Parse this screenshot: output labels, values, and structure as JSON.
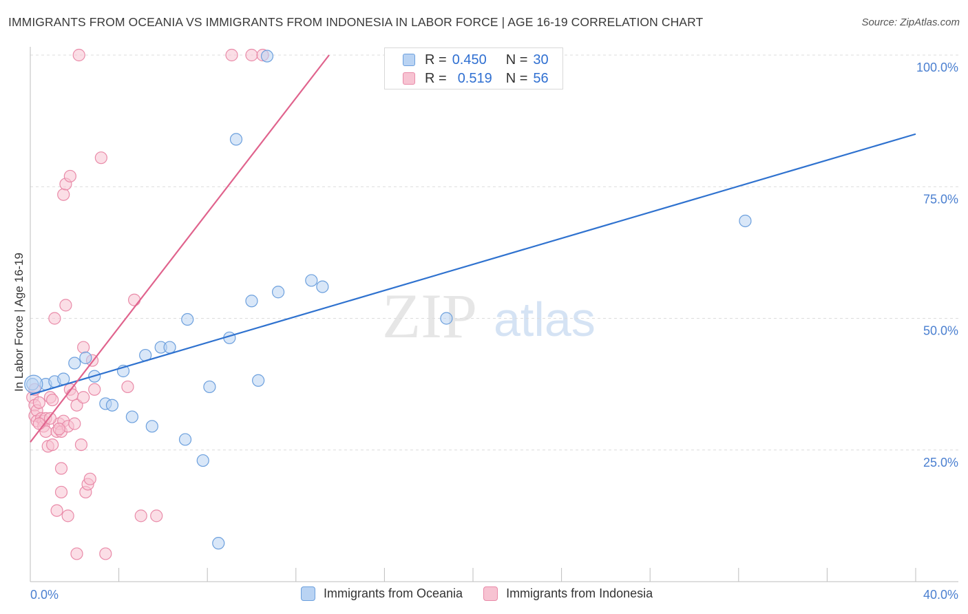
{
  "title": "IMMIGRANTS FROM OCEANIA VS IMMIGRANTS FROM INDONESIA IN LABOR FORCE | AGE 16-19 CORRELATION CHART",
  "source": "Source: ZipAtlas.com",
  "watermark": {
    "zip": "ZIP",
    "atlas": "atlas"
  },
  "legend_stats": [
    {
      "r_label": "R =",
      "r_value": "0.450",
      "n_label": "N =",
      "n_value": "30"
    },
    {
      "r_label": "R =",
      "r_value": "0.519",
      "n_label": "N =",
      "n_value": "56"
    }
  ],
  "colors": {
    "blue_fill": "#b9d3f3",
    "blue_stroke": "#6b9fdd",
    "blue_line": "#2f72cf",
    "pink_fill": "#f7c3d2",
    "pink_stroke": "#e98aa8",
    "pink_line": "#e0638d",
    "tick_text": "#4a7fd0",
    "grid": "#dcdcdc"
  },
  "chart_data": {
    "type": "scatter",
    "title": "IMMIGRANTS FROM OCEANIA VS IMMIGRANTS FROM INDONESIA IN LABOR FORCE | AGE 16-19 CORRELATION CHART",
    "xlabel": "",
    "ylabel": "In Labor Force | Age 16-19",
    "xlim": [
      0,
      40
    ],
    "ylim": [
      0,
      100
    ],
    "x_tick_labels": [
      "0.0%",
      "40.0%"
    ],
    "y_ticks": [
      25,
      50,
      75,
      100
    ],
    "y_tick_labels": [
      "25.0%",
      "50.0%",
      "75.0%",
      "100.0%"
    ],
    "grid": true,
    "series": [
      {
        "name": "Immigrants from Oceania",
        "r": 0.45,
        "n": 30,
        "trend": {
          "x": [
            0,
            40
          ],
          "y": [
            35.5,
            85.0
          ]
        },
        "points": [
          [
            0.1,
            37.5
          ],
          [
            0.7,
            37.5
          ],
          [
            1.1,
            38.0
          ],
          [
            1.5,
            38.5
          ],
          [
            2.0,
            41.5
          ],
          [
            2.5,
            42.5
          ],
          [
            2.9,
            39.0
          ],
          [
            3.4,
            33.8
          ],
          [
            3.7,
            33.5
          ],
          [
            4.2,
            40.0
          ],
          [
            4.6,
            31.3
          ],
          [
            5.2,
            43.0
          ],
          [
            5.5,
            29.5
          ],
          [
            5.9,
            44.5
          ],
          [
            6.3,
            44.5
          ],
          [
            7.0,
            27.0
          ],
          [
            7.1,
            49.8
          ],
          [
            7.8,
            23.0
          ],
          [
            8.1,
            37.0
          ],
          [
            8.5,
            7.3
          ],
          [
            9.0,
            46.3
          ],
          [
            9.3,
            84.0
          ],
          [
            10.0,
            53.3
          ],
          [
            10.3,
            38.2
          ],
          [
            10.7,
            99.8
          ],
          [
            11.2,
            55.0
          ],
          [
            12.7,
            57.2
          ],
          [
            13.2,
            56.0
          ],
          [
            18.8,
            50.0
          ],
          [
            32.3,
            68.5
          ]
        ]
      },
      {
        "name": "Immigrants from Indonesia",
        "r": 0.519,
        "n": 56,
        "trend": {
          "x": [
            0,
            13.5
          ],
          "y": [
            26.5,
            100
          ]
        },
        "points": [
          [
            0.1,
            35.0
          ],
          [
            0.2,
            33.5
          ],
          [
            0.2,
            31.5
          ],
          [
            0.3,
            32.5
          ],
          [
            0.3,
            30.5
          ],
          [
            0.4,
            34.0
          ],
          [
            0.5,
            31.0
          ],
          [
            0.6,
            30.5
          ],
          [
            0.6,
            29.5
          ],
          [
            0.7,
            31.0
          ],
          [
            0.7,
            28.5
          ],
          [
            0.8,
            25.7
          ],
          [
            0.9,
            35.0
          ],
          [
            1.0,
            26.0
          ],
          [
            1.0,
            34.5
          ],
          [
            1.1,
            50.0
          ],
          [
            1.2,
            13.5
          ],
          [
            1.2,
            28.5
          ],
          [
            1.3,
            30.0
          ],
          [
            1.4,
            28.5
          ],
          [
            1.4,
            17.0
          ],
          [
            1.4,
            21.5
          ],
          [
            1.5,
            73.5
          ],
          [
            1.5,
            30.5
          ],
          [
            1.6,
            75.5
          ],
          [
            1.6,
            52.5
          ],
          [
            1.7,
            12.5
          ],
          [
            1.7,
            29.5
          ],
          [
            1.8,
            77.0
          ],
          [
            1.8,
            36.5
          ],
          [
            1.9,
            35.5
          ],
          [
            2.0,
            30.0
          ],
          [
            2.1,
            5.3
          ],
          [
            2.1,
            33.5
          ],
          [
            2.2,
            100.0
          ],
          [
            2.3,
            26.0
          ],
          [
            2.4,
            44.5
          ],
          [
            2.4,
            35.0
          ],
          [
            2.5,
            17.0
          ],
          [
            2.6,
            18.5
          ],
          [
            2.7,
            19.5
          ],
          [
            2.8,
            42.0
          ],
          [
            2.9,
            36.5
          ],
          [
            3.2,
            80.5
          ],
          [
            3.4,
            5.3
          ],
          [
            4.4,
            37.0
          ],
          [
            4.7,
            53.5
          ],
          [
            5.0,
            12.5
          ],
          [
            5.7,
            12.5
          ],
          [
            9.1,
            100.0
          ],
          [
            10.0,
            100.0
          ],
          [
            10.5,
            100.0
          ],
          [
            0.2,
            36.5
          ],
          [
            0.4,
            30.0
          ],
          [
            1.3,
            29.0
          ],
          [
            0.9,
            31.0
          ]
        ]
      }
    ],
    "legend": [
      "Immigrants from Oceania",
      "Immigrants from Indonesia"
    ],
    "legend_placement": "bottom-center"
  }
}
